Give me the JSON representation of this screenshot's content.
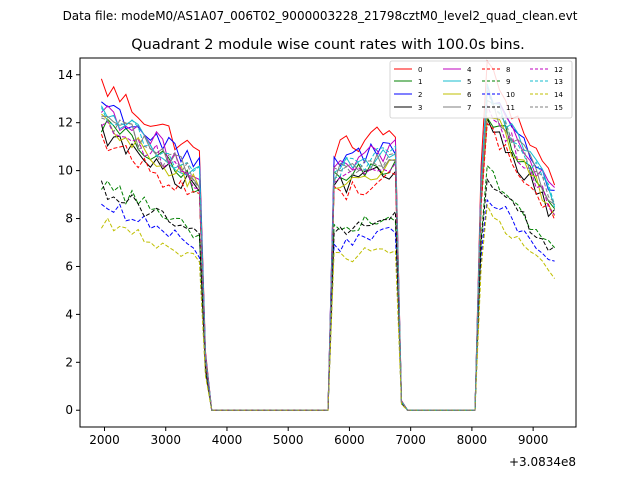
{
  "chart_data": {
    "type": "line",
    "suptitle": "Data file: modeM0/AS1A07_006T02_9000003228_21798cztM0_level2_quad_clean.evt",
    "title": "Quadrant 2 module wise count rates with 100.0s bins.",
    "xlabel": "",
    "ylabel": "",
    "x_offset_label": "+3.0834e8",
    "xlim": [
      1600,
      9700
    ],
    "ylim": [
      -0.7,
      14.7
    ],
    "xticks": [
      2000,
      3000,
      4000,
      5000,
      6000,
      7000,
      8000,
      9000
    ],
    "yticks": [
      0,
      2,
      4,
      6,
      8,
      10,
      12,
      14
    ],
    "legend_position": "top-right",
    "legend_columns": 4,
    "segments": [
      [
        1950,
        3650
      ],
      [
        5650,
        6850
      ],
      [
        6930,
        8050
      ],
      [
        8150,
        9350
      ]
    ],
    "series": [
      {
        "name": "0",
        "color": "#ff0000",
        "dash": "solid",
        "level": 13.6
      },
      {
        "name": "1",
        "color": "#008000",
        "dash": "solid",
        "level": 12.0
      },
      {
        "name": "2",
        "color": "#0000ff",
        "dash": "solid",
        "level": 12.9
      },
      {
        "name": "3",
        "color": "#000000",
        "dash": "solid",
        "level": 11.6
      },
      {
        "name": "4",
        "color": "#bf00bf",
        "dash": "solid",
        "level": 12.7
      },
      {
        "name": "5",
        "color": "#17becf",
        "dash": "solid",
        "level": 12.6
      },
      {
        "name": "6",
        "color": "#bfbf00",
        "dash": "solid",
        "level": 11.9
      },
      {
        "name": "7",
        "color": "#7f7f7f",
        "dash": "solid",
        "level": 12.4
      },
      {
        "name": "8",
        "color": "#ff0000",
        "dash": "dashed",
        "level": 11.3
      },
      {
        "name": "9",
        "color": "#008000",
        "dash": "dashed",
        "level": 9.5
      },
      {
        "name": "10",
        "color": "#0000ff",
        "dash": "dashed",
        "level": 8.6
      },
      {
        "name": "11",
        "color": "#000000",
        "dash": "dashed",
        "level": 9.3
      },
      {
        "name": "12",
        "color": "#bf00bf",
        "dash": "dashed",
        "level": 12.1
      },
      {
        "name": "13",
        "color": "#17becf",
        "dash": "dashed",
        "level": 12.5
      },
      {
        "name": "14",
        "color": "#bfbf00",
        "dash": "dashed",
        "level": 7.9
      },
      {
        "name": "15",
        "color": "#7f7f7f",
        "dash": "dashed",
        "level": 12.3
      }
    ]
  }
}
